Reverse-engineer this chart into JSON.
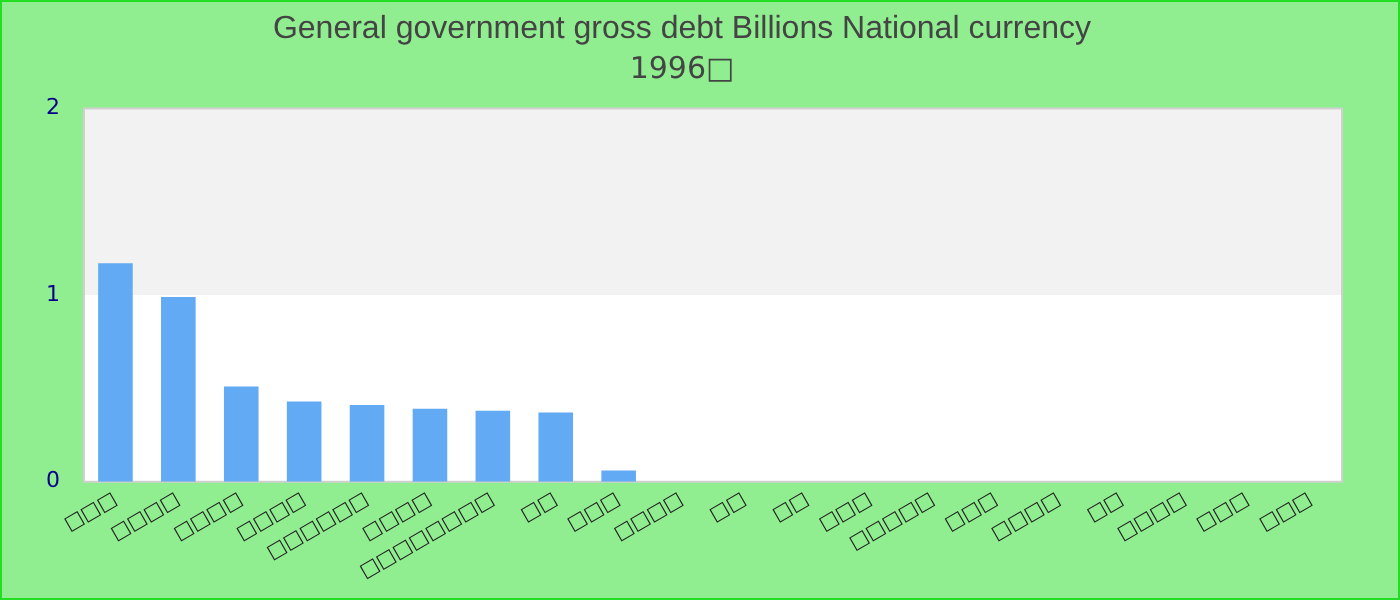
{
  "chart_data": {
    "type": "bar",
    "title": "General government gross debt Billions National currency",
    "subtitle": "1996□",
    "categories": [
      "□□□",
      "□□□□",
      "□□□□",
      "□□□□",
      "□□□□□□",
      "□□□□",
      "□□□□□□□□",
      "□□",
      "□□□",
      "□□□□",
      "□□",
      "□□",
      "□□□",
      "□□□□□",
      "□□□",
      "□□□□",
      "□□",
      "□□□□",
      "□□□",
      "□□□"
    ],
    "values": [
      1.17,
      0.99,
      0.51,
      0.43,
      0.41,
      0.39,
      0.38,
      0.37,
      0.06,
      0,
      0,
      0,
      0,
      0,
      0,
      0,
      0,
      0,
      0,
      0
    ],
    "color": "#62aaf4",
    "ylim": [
      0,
      2
    ],
    "yticks": [
      0,
      1,
      2
    ],
    "bands": [
      {
        "axis": "y",
        "from": 1,
        "to": 2,
        "color": "#f2f2f2"
      }
    ],
    "grid": false,
    "legend": false
  }
}
